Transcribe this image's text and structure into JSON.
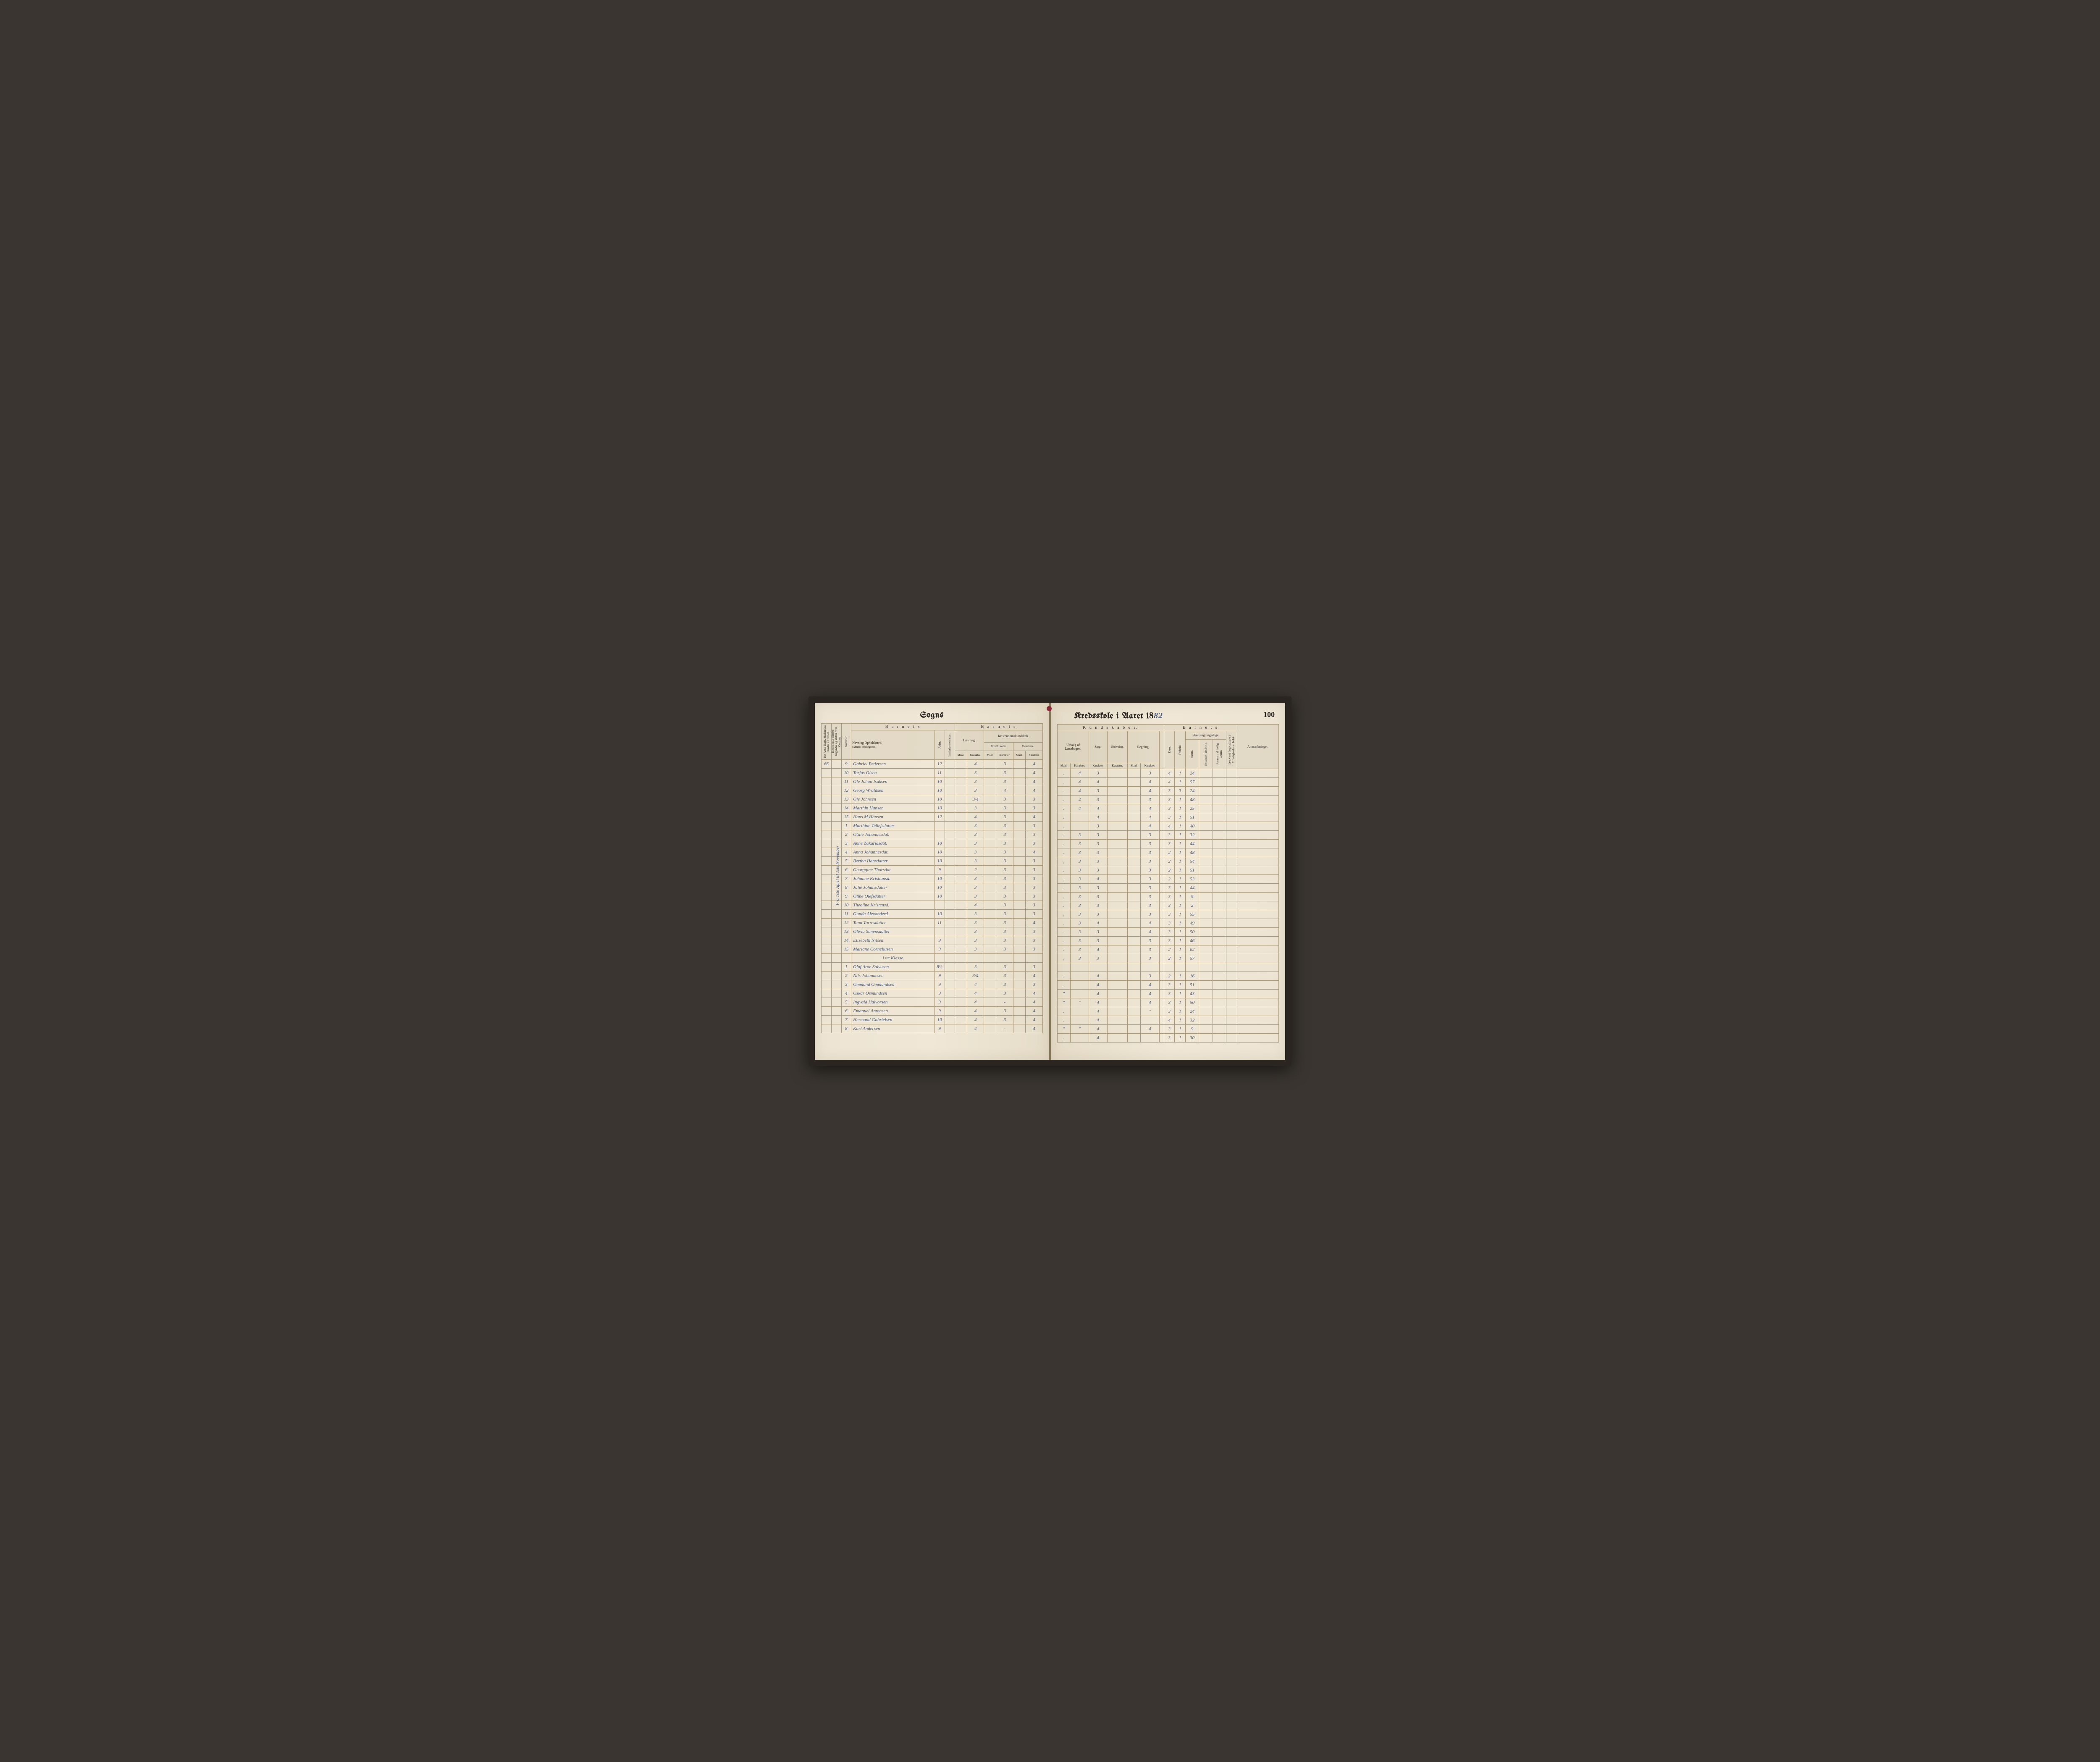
{
  "page_number": "100",
  "title_left": "Sogns",
  "title_right_prefix": "Kredsskole i Aaret 18",
  "title_right_year": "82",
  "vertical_margin_note": "Fra 1ste April til 1ste November",
  "colors": {
    "paper": "#f0e7d6",
    "ink_print": "#2a2520",
    "ink_hand": "#4a5a7a",
    "rule": "#a89878",
    "binding": "#8a2a3a"
  },
  "left_headers": {
    "group_barnets": "B a r n e t s",
    "v1": "Det Antal Dage, Skolen skal holdes i Kredsen.",
    "v2": "Datum, naar Skolen begynder og slutter hver Omgang.",
    "v3": "Nummer.",
    "name": "Navn og Opholdssted.",
    "name_sub": "(Anføres afdelingsvis).",
    "v4": "Alder.",
    "v5": "Indskrivelsesdatum.",
    "laesning": "Læsning.",
    "kristendom": "Kristendomskundskab.",
    "bibel": "Bibelhistorie.",
    "troes": "Troeslære.",
    "maal": "Maal.",
    "karakter": "Karakter."
  },
  "right_headers": {
    "kundskaber": "K u n d s k a b e r.",
    "barnets": "B a r n e t s",
    "udvalg": "Udvalg af Læsebogen.",
    "sang": "Sang.",
    "skriv": "Skrivning.",
    "regning": "Regning.",
    "skolesog": "Skolesøgningsdage.",
    "evne": "Evne.",
    "forhold": "Forhold.",
    "modte": "mødte.",
    "fors_hele": "forsømte i det Hele.",
    "fors_lov": "forsømte af lovlig Grund.",
    "antal_virk": "Det Antal Dage, Skolen i Virkeligheden er holdt.",
    "anm": "Anmærkninger.",
    "maal": "Maal.",
    "karakter": "Karakter."
  },
  "antal_dage": "66",
  "class_divider": "1ste Klasse.",
  "rows": [
    {
      "num": "9",
      "name": "Gabriel Pedersen",
      "alder": "12",
      "l_m": "",
      "l_k": "4",
      "b_m": "",
      "b_k": "3",
      "t_m": "",
      "t_k": "4",
      "u_m": ".",
      "u_k": "4",
      "sang": "3",
      "skriv": "",
      "r_m": "",
      "r_k": "3",
      "evne": "4",
      "forh": "1",
      "modte": "24",
      "f1": "",
      "f2": "",
      "virk": ""
    },
    {
      "num": "10",
      "name": "Torjus Olsen",
      "alder": "11",
      "l_m": "",
      "l_k": "3",
      "b_m": "",
      "b_k": "3",
      "t_m": "",
      "t_k": "4",
      "u_m": ",",
      "u_k": "4",
      "sang": "4",
      "skriv": "",
      "r_m": "",
      "r_k": "4",
      "evne": "4",
      "forh": "1",
      "modte": "57",
      "f1": "",
      "f2": "",
      "virk": ""
    },
    {
      "num": "11",
      "name": "Ole Johan Isaksen",
      "alder": "10",
      "l_m": "",
      "l_k": "3",
      "b_m": "",
      "b_k": "3",
      "t_m": "",
      "t_k": "4",
      "u_m": ".",
      "u_k": "4",
      "sang": "3",
      "skriv": "",
      "r_m": "",
      "r_k": "4",
      "evne": "3",
      "forh": "3",
      "modte": "24",
      "f1": "",
      "f2": "",
      "virk": ""
    },
    {
      "num": "12",
      "name": "Georg Wraldsen",
      "alder": "10",
      "l_m": "",
      "l_k": "3",
      "b_m": "",
      "b_k": "4",
      "t_m": "",
      "t_k": "4",
      "u_m": ".",
      "u_k": "4",
      "sang": "3",
      "skriv": "",
      "r_m": "",
      "r_k": "3",
      "evne": "3",
      "forh": "1",
      "modte": "48",
      "f1": "",
      "f2": "",
      "virk": ""
    },
    {
      "num": "13",
      "name": "Ole Johnsen",
      "alder": "10",
      "l_m": "",
      "l_k": "3/4",
      "b_m": "",
      "b_k": "3",
      "t_m": "",
      "t_k": "3",
      "u_m": ".",
      "u_k": "4",
      "sang": "4",
      "skriv": "",
      "r_m": "",
      "r_k": "4",
      "evne": "3",
      "forh": "1",
      "modte": "25",
      "f1": "",
      "f2": "",
      "virk": ""
    },
    {
      "num": "14",
      "name": "Marthin Hansen",
      "alder": "10",
      "l_m": "",
      "l_k": "3",
      "b_m": "",
      "b_k": "3",
      "t_m": "",
      "t_k": "3",
      "u_m": ".",
      "u_k": "",
      "sang": "4",
      "skriv": "",
      "r_m": "",
      "r_k": "4",
      "evne": "3",
      "forh": "1",
      "modte": "51",
      "f1": "",
      "f2": "",
      "virk": ""
    },
    {
      "num": "15",
      "name": "Hans M Hansen",
      "alder": "12",
      "l_m": "",
      "l_k": "4",
      "b_m": "",
      "b_k": "3",
      "t_m": "",
      "t_k": "4",
      "u_m": ".",
      "u_k": "",
      "sang": "3",
      "skriv": "",
      "r_m": "",
      "r_k": "4",
      "evne": "4",
      "forh": "1",
      "modte": "40",
      "f1": "",
      "f2": "",
      "virk": ""
    },
    {
      "num": "1",
      "name": "Marthine Tellefsdatter",
      "alder": "",
      "l_m": "",
      "l_k": "3",
      "b_m": "",
      "b_k": "3",
      "t_m": "",
      "t_k": "3",
      "u_m": ".",
      "u_k": "3",
      "sang": "3",
      "skriv": "",
      "r_m": "",
      "r_k": "3",
      "evne": "3",
      "forh": "1",
      "modte": "32",
      "f1": "",
      "f2": "",
      "virk": ""
    },
    {
      "num": "2",
      "name": "Otilie Johannesdat.",
      "alder": "",
      "l_m": "",
      "l_k": "3",
      "b_m": "",
      "b_k": "3",
      "t_m": "",
      "t_k": "3",
      "u_m": ".",
      "u_k": "3",
      "sang": "3",
      "skriv": "",
      "r_m": "",
      "r_k": "3",
      "evne": "3",
      "forh": "1",
      "modte": "44",
      "f1": "",
      "f2": "",
      "virk": ""
    },
    {
      "num": "3",
      "name": "Anne Zakariasdat.",
      "alder": "10",
      "l_m": "",
      "l_k": "3",
      "b_m": "",
      "b_k": "3",
      "t_m": "",
      "t_k": "3",
      "u_m": ".",
      "u_k": "3",
      "sang": "3",
      "skriv": "",
      "r_m": "",
      "r_k": "3",
      "evne": "2",
      "forh": "1",
      "modte": "48",
      "f1": "",
      "f2": "",
      "virk": ""
    },
    {
      "num": "4",
      "name": "Anna Johannesdat.",
      "alder": "10",
      "l_m": "",
      "l_k": "3",
      "b_m": "",
      "b_k": "3",
      "t_m": "",
      "t_k": "4",
      "u_m": ",",
      "u_k": "3",
      "sang": "3",
      "skriv": "",
      "r_m": "",
      "r_k": "3",
      "evne": "2",
      "forh": "1",
      "modte": "54",
      "f1": "",
      "f2": "",
      "virk": ""
    },
    {
      "num": "5",
      "name": "Bertha Hansdatter",
      "alder": "10",
      "l_m": "",
      "l_k": "3",
      "b_m": "",
      "b_k": "3",
      "t_m": "",
      "t_k": "3",
      "u_m": ".",
      "u_k": "3",
      "sang": "3",
      "skriv": "",
      "r_m": "",
      "r_k": "3",
      "evne": "2",
      "forh": "1",
      "modte": "51",
      "f1": "",
      "f2": "",
      "virk": ""
    },
    {
      "num": "6",
      "name": "Georggine Thorsdat",
      "alder": "9",
      "l_m": "",
      "l_k": "2",
      "b_m": "",
      "b_k": "3",
      "t_m": "",
      "t_k": "3",
      "u_m": ",",
      "u_k": "3",
      "sang": "4",
      "skriv": "",
      "r_m": "",
      "r_k": "3",
      "evne": "2",
      "forh": "1",
      "modte": "53",
      "f1": "",
      "f2": "",
      "virk": ""
    },
    {
      "num": "7",
      "name": "Johanne Kristiansd.",
      "alder": "10",
      "l_m": "",
      "l_k": "3",
      "b_m": "",
      "b_k": "3",
      "t_m": "",
      "t_k": "3",
      "u_m": ".",
      "u_k": "3",
      "sang": "3",
      "skriv": "",
      "r_m": "",
      "r_k": "3",
      "evne": "3",
      "forh": "1",
      "modte": "44",
      "f1": "",
      "f2": "",
      "virk": ""
    },
    {
      "num": "8",
      "name": "Julie Johansdatter",
      "alder": "10",
      "l_m": "",
      "l_k": "3",
      "b_m": "",
      "b_k": "3",
      "t_m": "",
      "t_k": "3",
      "u_m": ",",
      "u_k": "3",
      "sang": "3",
      "skriv": "",
      "r_m": "",
      "r_k": "3",
      "evne": "3",
      "forh": "1",
      "modte": "9",
      "f1": "",
      "f2": "",
      "virk": ""
    },
    {
      "num": "9",
      "name": "Oline Olefsdatter",
      "alder": "10",
      "l_m": "",
      "l_k": "3",
      "b_m": "",
      "b_k": "3",
      "t_m": "",
      "t_k": "3",
      "u_m": ".",
      "u_k": "3",
      "sang": "3",
      "skriv": "",
      "r_m": "",
      "r_k": "3",
      "evne": "3",
      "forh": "1",
      "modte": "2",
      "f1": "",
      "f2": "",
      "virk": ""
    },
    {
      "num": "10",
      "name": "Theoline Kristensd.",
      "alder": "",
      "l_m": "",
      "l_k": "4",
      "b_m": "",
      "b_k": "3",
      "t_m": "",
      "t_k": "3",
      "u_m": ",",
      "u_k": "3",
      "sang": "3",
      "skriv": "",
      "r_m": "",
      "r_k": "3",
      "evne": "3",
      "forh": "1",
      "modte": "55",
      "f1": "",
      "f2": "",
      "virk": ""
    },
    {
      "num": "11",
      "name": "Gunda Alexanderd",
      "alder": "10",
      "l_m": "",
      "l_k": "3",
      "b_m": "",
      "b_k": "3",
      "t_m": "",
      "t_k": "3",
      "u_m": ",",
      "u_k": "3",
      "sang": "4",
      "skriv": "",
      "r_m": "",
      "r_k": "4",
      "evne": "3",
      "forh": "1",
      "modte": "49",
      "f1": "",
      "f2": "",
      "virk": ""
    },
    {
      "num": "12",
      "name": "Tana Torresdatter",
      "alder": "11",
      "l_m": "",
      "l_k": "3",
      "b_m": "",
      "b_k": "3",
      "t_m": "",
      "t_k": "4",
      "u_m": ".",
      "u_k": "3",
      "sang": "3",
      "skriv": "",
      "r_m": "",
      "r_k": "4",
      "evne": "3",
      "forh": "1",
      "modte": "50",
      "f1": "",
      "f2": "",
      "virk": ""
    },
    {
      "num": "13",
      "name": "Olivia Simensdatter",
      "alder": "",
      "l_m": "",
      "l_k": "3",
      "b_m": "",
      "b_k": "3",
      "t_m": "",
      "t_k": "3",
      "u_m": ".",
      "u_k": "3",
      "sang": "3",
      "skriv": "",
      "r_m": "",
      "r_k": "3",
      "evne": "3",
      "forh": "1",
      "modte": "46",
      "f1": "",
      "f2": "",
      "virk": ""
    },
    {
      "num": "14",
      "name": "Elisebeth Nilsen",
      "alder": "9",
      "l_m": "",
      "l_k": "3",
      "b_m": "",
      "b_k": "3",
      "t_m": "",
      "t_k": "3",
      "u_m": ".",
      "u_k": "3",
      "sang": "4",
      "skriv": "",
      "r_m": "",
      "r_k": "3",
      "evne": "2",
      "forh": "1",
      "modte": "62",
      "f1": "",
      "f2": "",
      "virk": ""
    },
    {
      "num": "15",
      "name": "Mariane Corneliusen",
      "alder": "9",
      "l_m": "",
      "l_k": "3",
      "b_m": "",
      "b_k": "3",
      "t_m": "",
      "t_k": "3",
      "u_m": ",",
      "u_k": "3",
      "sang": "3",
      "skriv": "",
      "r_m": "",
      "r_k": "3",
      "evne": "2",
      "forh": "1",
      "modte": "57",
      "f1": "",
      "f2": "",
      "virk": ""
    }
  ],
  "rows2": [
    {
      "num": "1",
      "name": "Oluf Aroe Salvusen",
      "alder": "8½",
      "l_m": "",
      "l_k": "3",
      "b_m": "",
      "b_k": "3",
      "t_m": "",
      "t_k": "3",
      "u_m": ".",
      "u_k": "",
      "sang": "4",
      "skriv": "",
      "r_m": "",
      "r_k": "3",
      "evne": "2",
      "forh": "1",
      "modte": "16",
      "f1": "",
      "f2": "",
      "virk": ""
    },
    {
      "num": "2",
      "name": "Nils Johannesen",
      "alder": "9",
      "l_m": "",
      "l_k": "3/4",
      "b_m": "",
      "b_k": "3",
      "t_m": "",
      "t_k": "4",
      "u_m": ".",
      "u_k": "",
      "sang": "4",
      "skriv": "",
      "r_m": "",
      "r_k": "4",
      "evne": "3",
      "forh": "1",
      "modte": "51",
      "f1": "",
      "f2": "",
      "virk": ""
    },
    {
      "num": "3",
      "name": "Ommund Ommundsen",
      "alder": "9",
      "l_m": "",
      "l_k": "4",
      "b_m": "",
      "b_k": "3",
      "t_m": "",
      "t_k": "3",
      "u_m": "\"",
      "u_k": "",
      "sang": "4",
      "skriv": "",
      "r_m": "",
      "r_k": "4",
      "evne": "3",
      "forh": "1",
      "modte": "43",
      "f1": "",
      "f2": "",
      "virk": ""
    },
    {
      "num": "4",
      "name": "Oskar Osmundsen",
      "alder": "9",
      "l_m": "",
      "l_k": "4",
      "b_m": "",
      "b_k": "3",
      "t_m": "",
      "t_k": "4",
      "u_m": "\"",
      "u_k": "\"",
      "sang": "4",
      "skriv": "",
      "r_m": "",
      "r_k": "4",
      "evne": "3",
      "forh": "1",
      "modte": "50",
      "f1": "",
      "f2": "",
      "virk": ""
    },
    {
      "num": "5",
      "name": "Ingvald Halvorsen",
      "alder": "9",
      "l_m": "",
      "l_k": "4",
      "b_m": "",
      "b_k": "-",
      "t_m": "",
      "t_k": "4",
      "u_m": ".",
      "u_k": "",
      "sang": "4",
      "skriv": "",
      "r_m": "",
      "r_k": "\"",
      "evne": "3",
      "forh": "1",
      "modte": "24",
      "f1": "",
      "f2": "",
      "virk": ""
    },
    {
      "num": "6",
      "name": "Emanuel Antonsen",
      "alder": "9",
      "l_m": "",
      "l_k": "4",
      "b_m": "",
      "b_k": "3",
      "t_m": "",
      "t_k": "4",
      "u_m": ".",
      "u_k": "",
      "sang": "4",
      "skriv": "",
      "r_m": "",
      "r_k": "",
      "evne": "4",
      "forh": "1",
      "modte": "32",
      "f1": "",
      "f2": "",
      "virk": ""
    },
    {
      "num": "7",
      "name": "Hermand Gabrielsen",
      "alder": "10",
      "l_m": "",
      "l_k": "4",
      "b_m": "",
      "b_k": "3",
      "t_m": "",
      "t_k": "4",
      "u_m": "\"",
      "u_k": "\"",
      "sang": "4",
      "skriv": "",
      "r_m": "",
      "r_k": "4",
      "evne": "3",
      "forh": "1",
      "modte": "9",
      "f1": "",
      "f2": "",
      "virk": ""
    },
    {
      "num": "8",
      "name": "Karl Andersen",
      "alder": "9",
      "l_m": "",
      "l_k": "4",
      "b_m": "",
      "b_k": "-",
      "t_m": "",
      "t_k": "4",
      "u_m": ".",
      "u_k": "",
      "sang": "4",
      "skriv": "",
      "r_m": "",
      "r_k": "",
      "evne": "3",
      "forh": "1",
      "modte": "30",
      "f1": "",
      "f2": "",
      "virk": ""
    }
  ]
}
